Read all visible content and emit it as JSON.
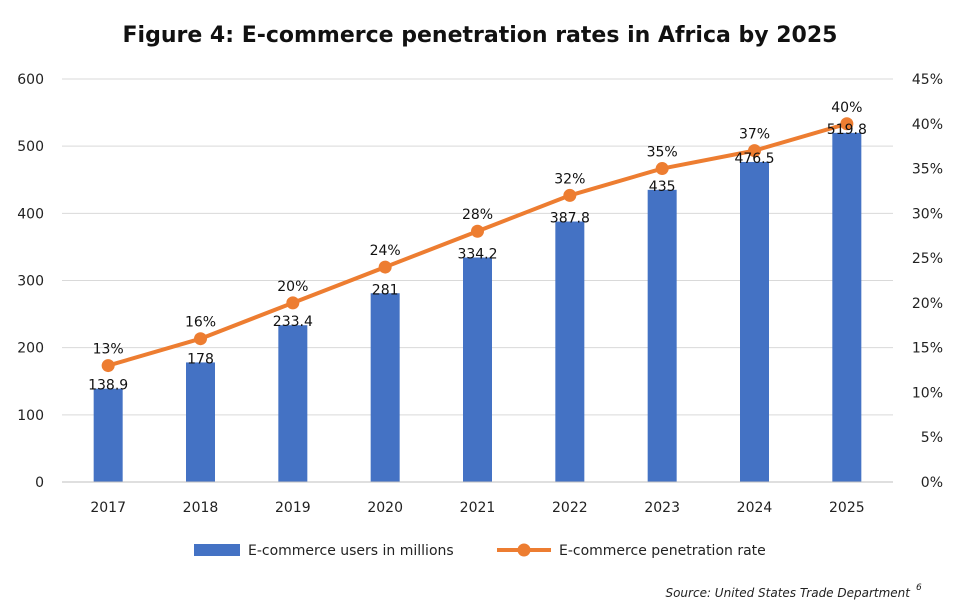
{
  "chart_data": {
    "type": "bar",
    "title": "Figure 4: E-commerce penetration rates in Africa by 2025",
    "categories": [
      "2017",
      "2018",
      "2019",
      "2020",
      "2021",
      "2022",
      "2023",
      "2024",
      "2025"
    ],
    "series": [
      {
        "name": "E-commerce users in millions",
        "type": "bar",
        "axis": "left",
        "color": "#4472C4",
        "values": [
          138.9,
          178,
          233.4,
          281,
          334.2,
          387.8,
          435,
          476.5,
          519.8
        ],
        "labels": [
          "138.9",
          "178",
          "233.4",
          "281",
          "334.2",
          "387.8",
          "435",
          "476.5",
          "519.8"
        ]
      },
      {
        "name": "E-commerce penetration rate",
        "type": "line",
        "axis": "right",
        "color": "#ED7D31",
        "values": [
          13,
          16,
          20,
          24,
          28,
          32,
          35,
          37,
          40
        ],
        "labels": [
          "13%",
          "16%",
          "20%",
          "24%",
          "28%",
          "32%",
          "35%",
          "37%",
          "40%"
        ]
      }
    ],
    "y_left": {
      "min": 0,
      "max": 600,
      "ticks": [
        0,
        100,
        200,
        300,
        400,
        500,
        600
      ],
      "tick_labels": [
        "0",
        "100",
        "200",
        "300",
        "400",
        "500",
        "600"
      ]
    },
    "y_right": {
      "min": 0,
      "max": 45,
      "ticks": [
        0,
        5,
        10,
        15,
        20,
        25,
        30,
        35,
        40,
        45
      ],
      "tick_labels": [
        "0%",
        "5%",
        "10%",
        "15%",
        "20%",
        "25%",
        "30%",
        "35%",
        "40%",
        "45%"
      ]
    },
    "grid": true,
    "legend_position": "bottom",
    "source": "Source: United States Trade Department",
    "source_superscript": "6"
  }
}
